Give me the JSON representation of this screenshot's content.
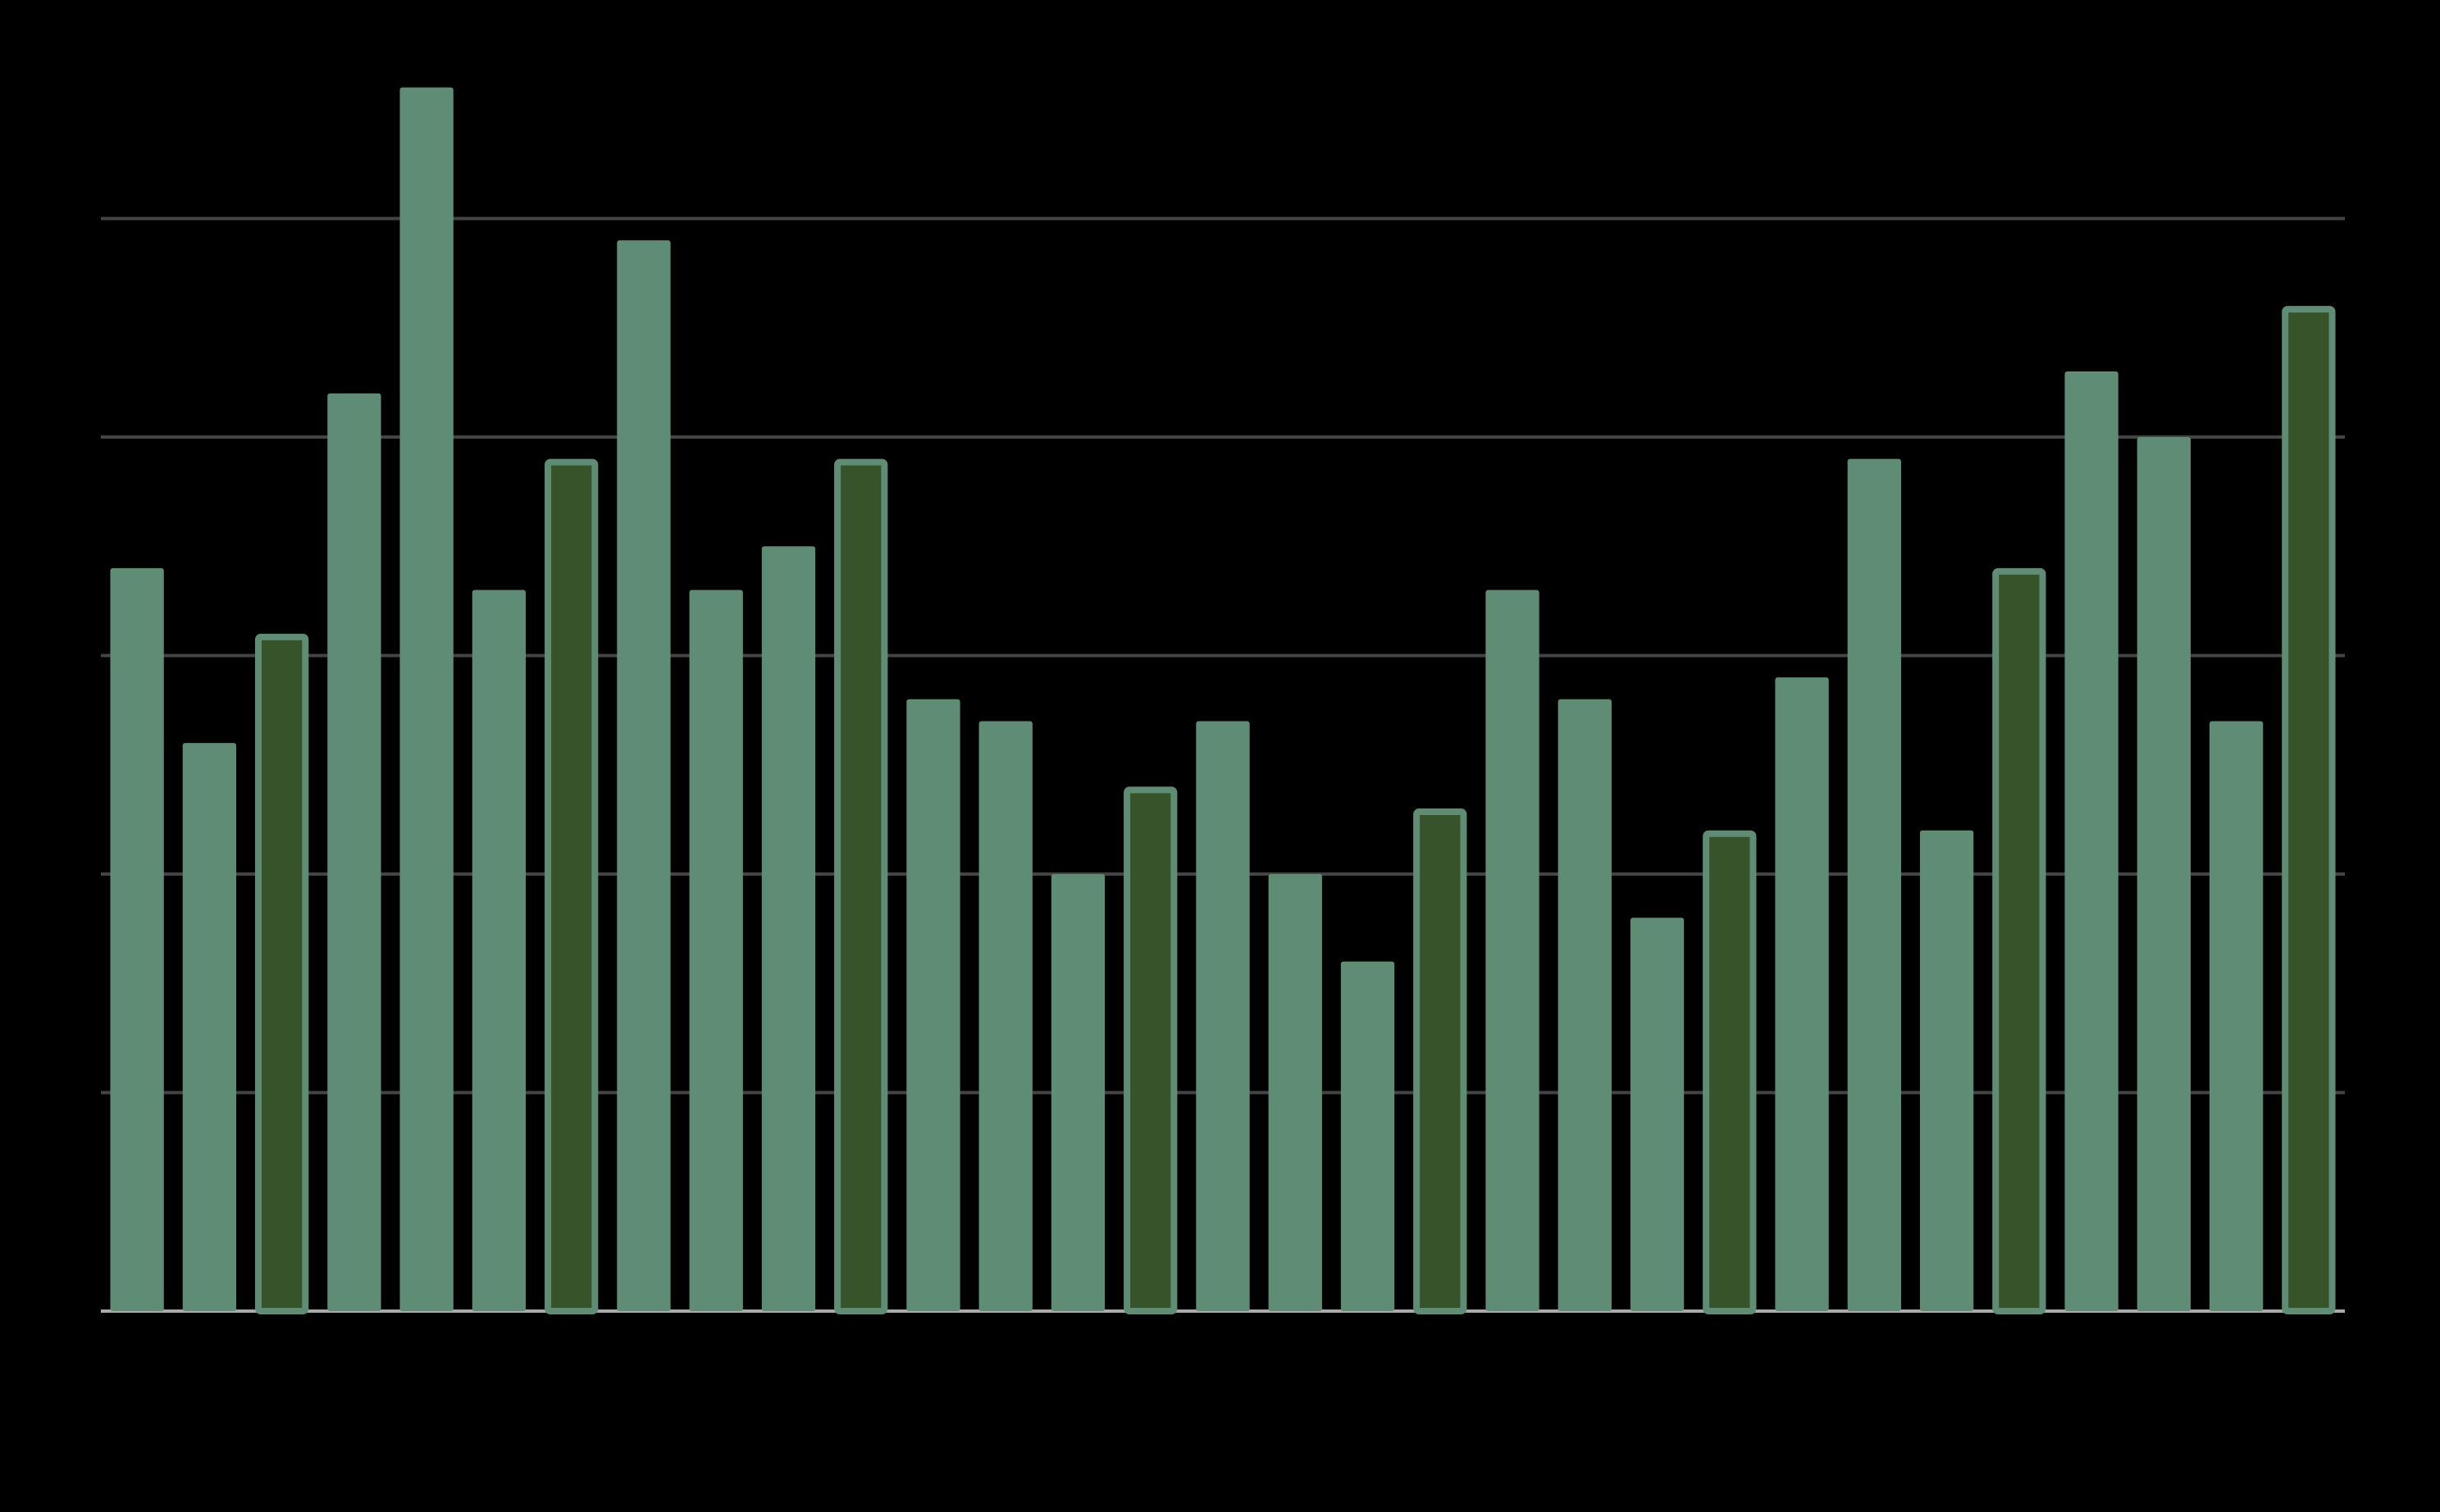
{
  "chart_data": {
    "type": "bar",
    "values": [
      3.4,
      2.6,
      3.1,
      4.2,
      5.6,
      3.3,
      3.9,
      4.9,
      3.3,
      3.5,
      3.9,
      2.8,
      2.7,
      2.0,
      2.4,
      2.7,
      2.0,
      1.6,
      2.3,
      3.3,
      2.8,
      1.8,
      2.2,
      2.9,
      3.9,
      2.2,
      3.4,
      4.3,
      4.0,
      2.7,
      4.6
    ],
    "colors": [
      "#5e8c74",
      "#5e8c74",
      "#37532a",
      "#5e8c74",
      "#5e8c74",
      "#5e8c74",
      "#37532a",
      "#5e8c74",
      "#5e8c74",
      "#5e8c74",
      "#37532a",
      "#5e8c74",
      "#5e8c74",
      "#5e8c74",
      "#37532a",
      "#5e8c74",
      "#5e8c74",
      "#5e8c74",
      "#37532a",
      "#5e8c74",
      "#5e8c74",
      "#5e8c74",
      "#37532a",
      "#5e8c74",
      "#5e8c74",
      "#5e8c74",
      "#37532a",
      "#5e8c74",
      "#5e8c74",
      "#5e8c74",
      "#37532a"
    ],
    "outline_color": "#5e8c74",
    "ylim": [
      0,
      6
    ],
    "yticks": [
      0,
      1,
      2,
      3,
      4,
      5
    ],
    "grid": true
  }
}
